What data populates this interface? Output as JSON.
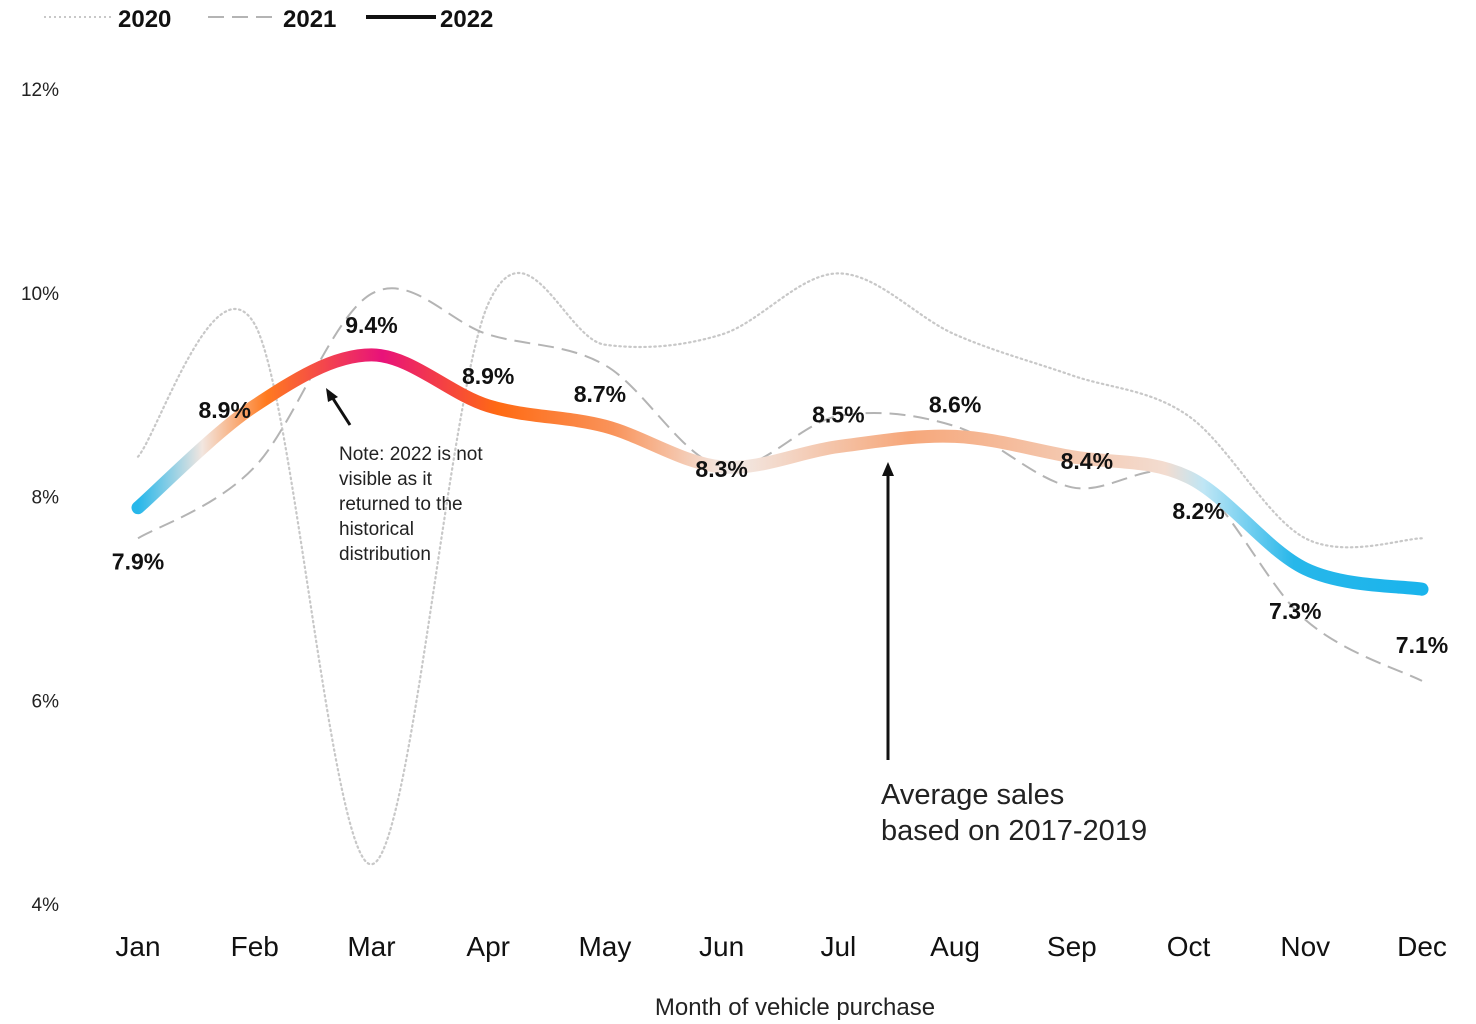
{
  "chart_data": {
    "type": "line",
    "categories": [
      "Jan",
      "Feb",
      "Mar",
      "Apr",
      "May",
      "Jun",
      "Jul",
      "Aug",
      "Sep",
      "Oct",
      "Nov",
      "Dec"
    ],
    "series": [
      {
        "name": "2020",
        "style": "dotted",
        "color": "#c8c8c8",
        "values": [
          8.4,
          9.7,
          4.4,
          9.9,
          9.5,
          9.6,
          10.2,
          9.6,
          9.2,
          8.8,
          7.6,
          7.6
        ]
      },
      {
        "name": "2021",
        "style": "dashed",
        "color": "#b4b4b4",
        "values": [
          7.6,
          8.3,
          10.0,
          9.6,
          9.3,
          8.3,
          8.8,
          8.7,
          8.1,
          8.2,
          6.8,
          6.2
        ]
      },
      {
        "name": "2022",
        "style": "solid",
        "color": "#111111",
        "values": [
          7.9,
          8.9,
          9.4,
          8.9,
          8.7,
          8.3,
          8.5,
          8.6,
          8.4,
          8.2,
          7.3,
          7.1
        ]
      }
    ],
    "average_line": {
      "values": [
        7.9,
        8.9,
        9.4,
        8.9,
        8.7,
        8.3,
        8.5,
        8.6,
        8.4,
        8.2,
        7.3,
        7.1
      ],
      "labels": [
        "7.9%",
        "8.9%",
        "9.4%",
        "8.9%",
        "8.7%",
        "8.3%",
        "8.5%",
        "8.6%",
        "8.4%",
        "8.2%",
        "7.3%",
        "7.1%"
      ]
    },
    "ylim": [
      4,
      12
    ],
    "yticks": [
      4,
      6,
      8,
      10,
      12
    ],
    "ytick_labels": [
      "4%",
      "6%",
      "8%",
      "10%",
      "12%"
    ],
    "xlabel": "Month of vehicle purchase",
    "ylabel": "",
    "legend_position": "top-left",
    "grid": false,
    "annotations": [
      {
        "text_lines": [
          "Note: 2022 is not",
          "visible as it",
          "returned to the",
          "historical",
          "distribution"
        ]
      },
      {
        "text_lines": [
          "Average sales",
          "based on 2017-2019"
        ]
      }
    ],
    "gradient_colors": {
      "light_blue": "#27b7ea",
      "pale": "#f2e6e0",
      "orange": "#ff6a13",
      "magenta": "#e8127a",
      "peach": "#f6a77a"
    }
  }
}
